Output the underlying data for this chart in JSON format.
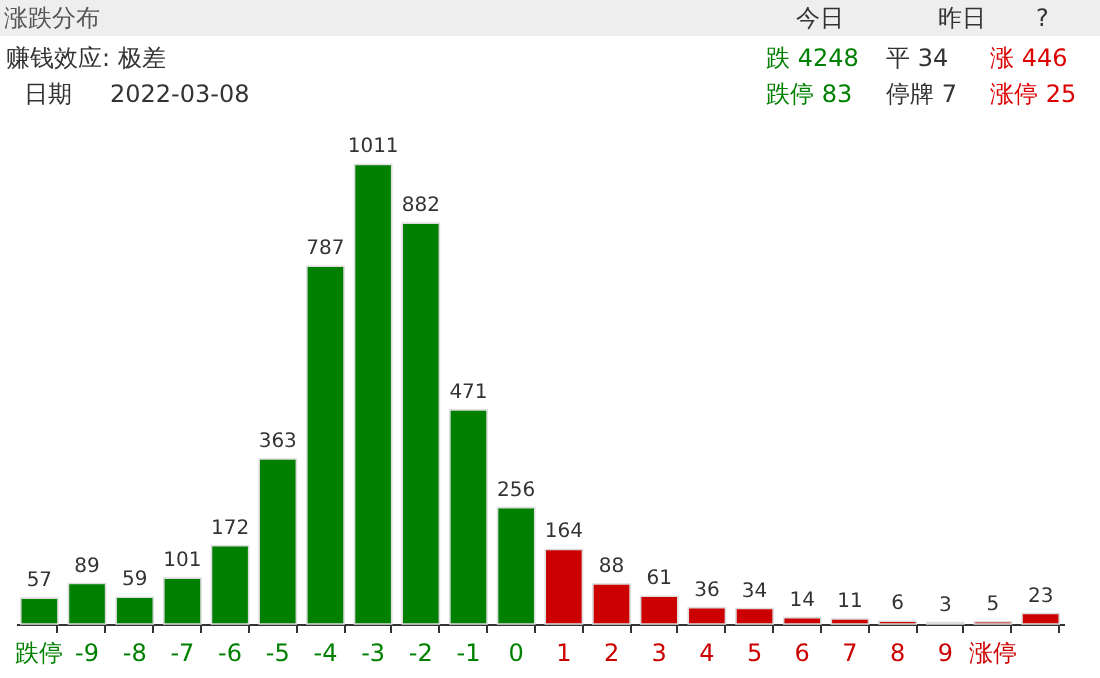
{
  "chart_data": {
    "type": "bar",
    "title": "涨跌分布",
    "categories": [
      "跌停",
      "-9",
      "-8",
      "-7",
      "-6",
      "-5",
      "-4",
      "-3",
      "-2",
      "-1",
      "0",
      "1",
      "2",
      "3",
      "4",
      "5",
      "6",
      "7",
      "8",
      "9",
      "涨停",
      null
    ],
    "values": [
      57,
      89,
      59,
      101,
      172,
      363,
      787,
      1011,
      882,
      471,
      256,
      164,
      88,
      61,
      36,
      34,
      14,
      11,
      6,
      3,
      5,
      23
    ],
    "colors": [
      "#008000",
      "#008000",
      "#008000",
      "#008000",
      "#008000",
      "#008000",
      "#008000",
      "#008000",
      "#008000",
      "#008000",
      "#008000",
      "#cc0000",
      "#cc0000",
      "#cc0000",
      "#cc0000",
      "#cc0000",
      "#cc0000",
      "#cc0000",
      "#cc0000",
      "#cc0000",
      "#cc0000",
      "#cc0000"
    ],
    "data_labels": true,
    "annotations": [
      "今日",
      "昨日",
      "?",
      "赚钱效应:  极差",
      "日期",
      "2022-03-08",
      "跌 4248",
      "平 34",
      "涨 446",
      "跌停 83",
      "停牌 7",
      "涨停 25"
    ]
  }
}
